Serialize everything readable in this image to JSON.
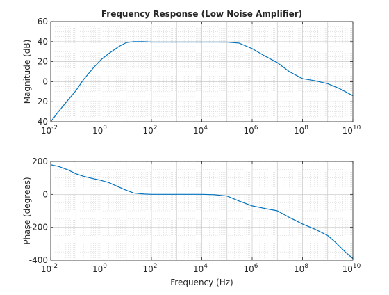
{
  "chart_data": [
    {
      "type": "line",
      "title": "Frequency Response (Low Noise Amplifier)",
      "xlabel": "",
      "ylabel": "Magnitude (dB)",
      "xscale": "log",
      "xlim": [
        0.01,
        10000000000
      ],
      "ylim": [
        -40,
        60
      ],
      "x_ticks": [
        0.01,
        1,
        100,
        10000,
        1000000,
        100000000,
        10000000000
      ],
      "x_tick_exponents": [
        "-2",
        "0",
        "2",
        "4",
        "6",
        "8",
        "10"
      ],
      "y_ticks": [
        "-40",
        "-20",
        "0",
        "20",
        "40",
        "60"
      ],
      "grid": true,
      "minor_grid": true,
      "series": [
        {
          "color": "#0072bd",
          "x": [
            0.01,
            0.02,
            0.05,
            0.1,
            0.2,
            0.5,
            1,
            2,
            5,
            10,
            20,
            50,
            100,
            300,
            1000,
            3000,
            10000,
            30000,
            100000,
            300000,
            1000000,
            3000000,
            10000000,
            30000000,
            100000000,
            300000000,
            1000000000,
            3000000000,
            10000000000
          ],
          "y": [
            -40,
            -30,
            -18,
            -9,
            2,
            14,
            22,
            28,
            35,
            39,
            40,
            40,
            39.5,
            39.5,
            39.5,
            39.5,
            39.5,
            39.5,
            39.5,
            38.5,
            33,
            26,
            19,
            10,
            3,
            1,
            -2,
            -7,
            -14
          ]
        }
      ]
    },
    {
      "type": "line",
      "title": "",
      "xlabel": "Frequency (Hz)",
      "ylabel": "Phase (degrees)",
      "xscale": "log",
      "xlim": [
        0.01,
        10000000000
      ],
      "ylim": [
        -400,
        200
      ],
      "x_ticks": [
        0.01,
        1,
        100,
        10000,
        1000000,
        100000000,
        10000000000
      ],
      "x_tick_exponents": [
        "-2",
        "0",
        "2",
        "4",
        "6",
        "8",
        "10"
      ],
      "y_ticks": [
        "-400",
        "-200",
        "0",
        "200"
      ],
      "grid": true,
      "minor_grid": true,
      "series": [
        {
          "color": "#0072bd",
          "x": [
            0.01,
            0.02,
            0.05,
            0.1,
            0.2,
            0.5,
            1,
            2,
            5,
            10,
            20,
            50,
            100,
            300,
            1000,
            3000,
            10000,
            30000,
            100000,
            300000,
            1000000,
            3000000,
            10000000,
            30000000,
            100000000,
            300000000,
            1000000000,
            2000000000,
            5000000000,
            10000000000
          ],
          "y": [
            180,
            170,
            148,
            125,
            110,
            95,
            85,
            72,
            45,
            25,
            8,
            2,
            0,
            0,
            0,
            0,
            0,
            -2,
            -10,
            -40,
            -70,
            -85,
            -100,
            -140,
            -180,
            -210,
            -250,
            -290,
            -350,
            -390
          ]
        }
      ]
    }
  ]
}
